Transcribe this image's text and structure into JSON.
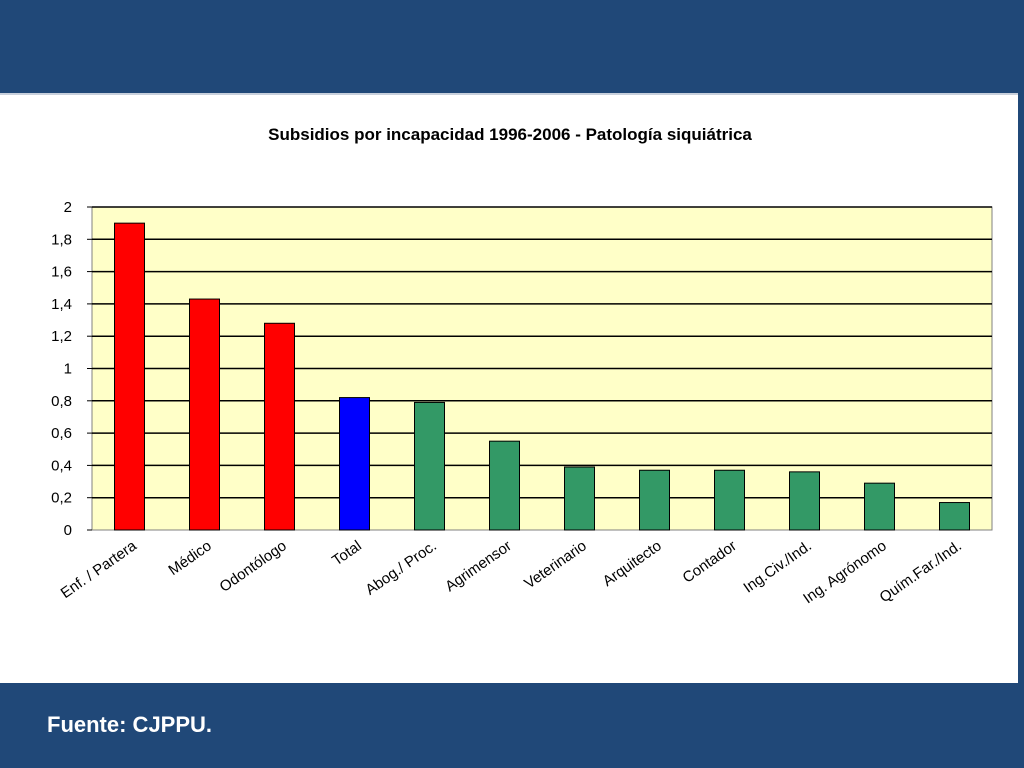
{
  "slide": {
    "source": "Fuente: CJPPU.",
    "colors": {
      "background": "#204878",
      "panel": "#ffffff",
      "plot_area": "#ffffc8"
    }
  },
  "chart_data": {
    "type": "bar",
    "title": "Subsidios por incapacidad 1996-2006 - Patología siquiátrica",
    "xlabel": "",
    "ylabel": "",
    "ylim": [
      0,
      2
    ],
    "yticks": [
      "0",
      "0,2",
      "0,4",
      "0,6",
      "0,8",
      "1",
      "1,2",
      "1,4",
      "1,6",
      "1,8",
      "2"
    ],
    "grid": true,
    "categories": [
      "Enf. / Partera",
      "Médico",
      "Odontólogo",
      "Total",
      "Abog./ Proc.",
      "Agrimensor",
      "Veterinario",
      "Arquitecto",
      "Contador",
      "Ing.Civ./Ind.",
      "Ing. Agrónomo",
      "Quím.Far./Ind."
    ],
    "values": [
      1.9,
      1.43,
      1.28,
      0.82,
      0.79,
      0.55,
      0.39,
      0.37,
      0.37,
      0.36,
      0.29,
      0.17
    ],
    "bar_colors": [
      "#ff0000",
      "#ff0000",
      "#ff0000",
      "#0000ff",
      "#339966",
      "#339966",
      "#339966",
      "#339966",
      "#339966",
      "#339966",
      "#339966",
      "#339966"
    ]
  }
}
